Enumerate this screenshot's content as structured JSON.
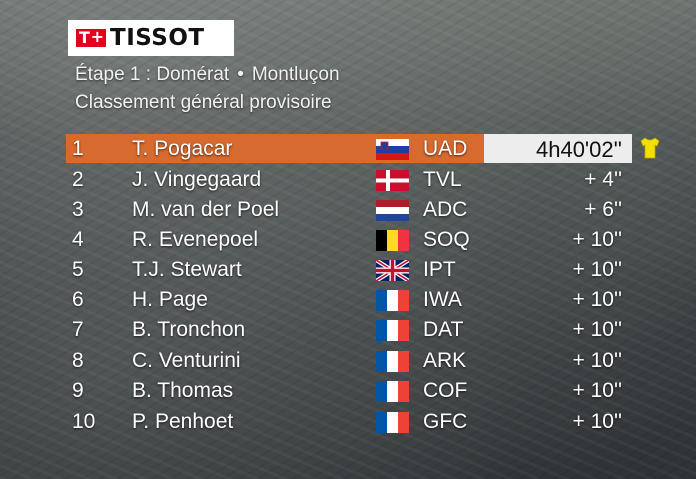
{
  "brand": {
    "logo_text": "TISSOT"
  },
  "header": {
    "stage": "Étape 1 : Domérat",
    "separator": "•",
    "stage_end": "Montluçon",
    "subtitle": "Classement général provisoire"
  },
  "colors": {
    "leader_bar": "#d76a2f",
    "time_box": "#ededed",
    "jersey": "#f2e000"
  },
  "rows": [
    {
      "pos": "1",
      "name": "T. Pogacar",
      "flag": "slovenia-flag",
      "team": "UAD",
      "time": "4h40'02''",
      "jersey": "yellow-jersey-icon"
    },
    {
      "pos": "2",
      "name": "J. Vingegaard",
      "flag": "denmark-flag",
      "team": "TVL",
      "time": "+ 4''"
    },
    {
      "pos": "3",
      "name": "M. van der Poel",
      "flag": "netherlands-flag",
      "team": "ADC",
      "time": "+ 6''"
    },
    {
      "pos": "4",
      "name": "R. Evenepoel",
      "flag": "belgium-flag",
      "team": "SOQ",
      "time": "+ 10''"
    },
    {
      "pos": "5",
      "name": "T.J. Stewart",
      "flag": "uk-flag",
      "team": "IPT",
      "time": "+ 10''"
    },
    {
      "pos": "6",
      "name": "H. Page",
      "flag": "france-flag",
      "team": "IWA",
      "time": "+ 10''"
    },
    {
      "pos": "7",
      "name": "B. Tronchon",
      "flag": "france-flag",
      "team": "DAT",
      "time": "+ 10''"
    },
    {
      "pos": "8",
      "name": "C. Venturini",
      "flag": "france-flag",
      "team": "ARK",
      "time": "+ 10''"
    },
    {
      "pos": "9",
      "name": "B. Thomas",
      "flag": "france-flag",
      "team": "COF",
      "time": "+ 10''"
    },
    {
      "pos": "10",
      "name": "P. Penhoet",
      "flag": "france-flag",
      "team": "GFC",
      "time": "+ 10''"
    }
  ]
}
